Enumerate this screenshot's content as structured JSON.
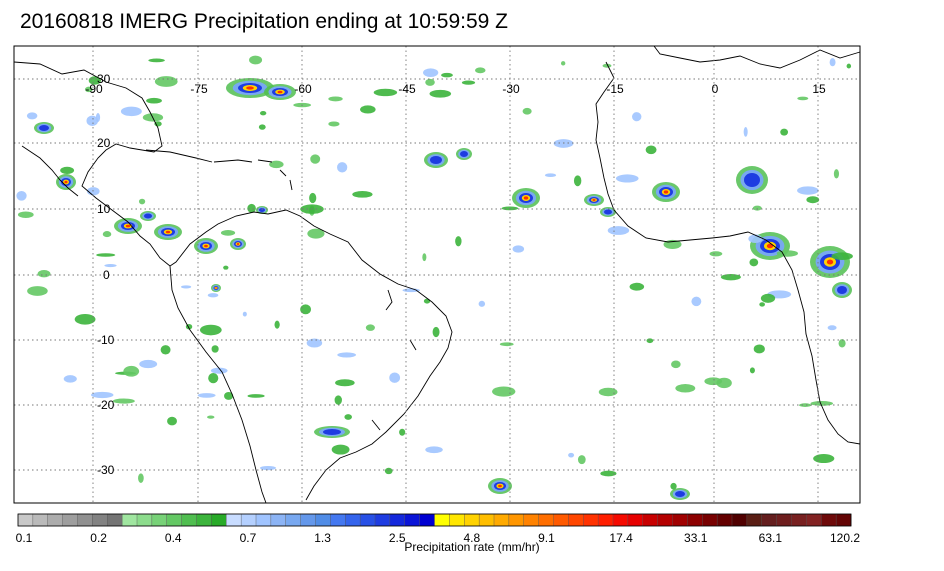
{
  "title": "20160818 IMERG Precipitation ending at 10:59:59 Z",
  "map": {
    "lon_ticks": [
      "-90",
      "-75",
      "-60",
      "-45",
      "-30",
      "-15",
      "0",
      "15"
    ],
    "lat_ticks": [
      "30",
      "20",
      "10",
      "0",
      "-10",
      "-20",
      "-30"
    ],
    "lon_range": [
      -95,
      25
    ],
    "lat_range": [
      -35,
      37
    ]
  },
  "colorbar": {
    "label": "Precipitation rate (mm/hr)",
    "ticks": [
      "0.1",
      "0.2",
      "0.4",
      "0.7",
      "1.3",
      "2.5",
      "4.8",
      "9.1",
      "17.4",
      "33.1",
      "63.1",
      "120.2"
    ],
    "colors": [
      "#c8c8c8",
      "#bababa",
      "#acacac",
      "#9e9e9e",
      "#909090",
      "#828282",
      "#747474",
      "#a0e6a0",
      "#8cdc8c",
      "#78d278",
      "#64c864",
      "#50be50",
      "#3cb43c",
      "#28aa28",
      "#c8dcff",
      "#b4d0ff",
      "#a0c4ff",
      "#8cb4f5",
      "#78a8f0",
      "#6498eb",
      "#508ce6",
      "#4478f0",
      "#3464ec",
      "#2850e6",
      "#1e3ce1",
      "#1428dc",
      "#0a14d7",
      "#0000d2",
      "#ffff00",
      "#ffe600",
      "#ffd200",
      "#ffbe00",
      "#ffaa00",
      "#ff9600",
      "#ff8200",
      "#ff6e00",
      "#ff5a00",
      "#ff4600",
      "#ff3200",
      "#ff1e00",
      "#f50a00",
      "#e60000",
      "#c80000",
      "#b40000",
      "#a00000",
      "#8c0000",
      "#780000",
      "#640000",
      "#500000",
      "#5a1e14",
      "#641e1e",
      "#6e1e1e",
      "#782020",
      "#822222",
      "#6e0a0a",
      "#640505"
    ]
  }
}
